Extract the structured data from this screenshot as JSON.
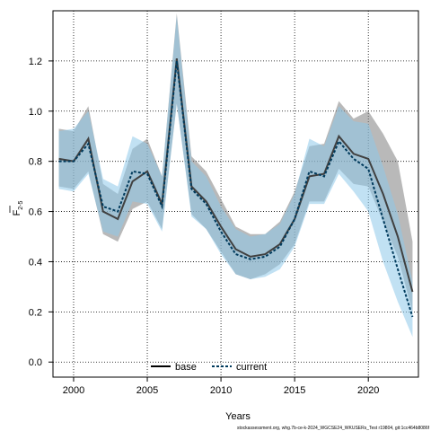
{
  "chart_data": {
    "type": "line",
    "xlabel": "Years",
    "ylabel": "F",
    "ylabel_sub": "2-5",
    "xlim": [
      1998.6,
      2023.4
    ],
    "ylim": [
      -0.06,
      1.4
    ],
    "xticks": [
      2000,
      2005,
      2010,
      2015,
      2020
    ],
    "yticks": [
      0.0,
      0.2,
      0.4,
      0.6,
      0.8,
      1.0,
      1.2
    ],
    "ytick_labels": [
      "0.0",
      "0.2",
      "0.4",
      "0.6",
      "0.8",
      "1.0",
      "1.2"
    ],
    "grid": true,
    "legend_position": "bottom",
    "x": [
      1999,
      2000,
      2001,
      2002,
      2003,
      2004,
      2005,
      2006,
      2007,
      2008,
      2009,
      2010,
      2011,
      2012,
      2013,
      2014,
      2015,
      2016,
      2017,
      2018,
      2019,
      2020,
      2021,
      2022,
      2023
    ],
    "series": [
      {
        "name": "base",
        "color": "#404040",
        "band_color": "#808080",
        "line_style": "solid",
        "values": [
          0.81,
          0.8,
          0.89,
          0.6,
          0.57,
          0.72,
          0.76,
          0.63,
          1.21,
          0.7,
          0.64,
          0.54,
          0.45,
          0.42,
          0.43,
          0.47,
          0.57,
          0.74,
          0.75,
          0.9,
          0.83,
          0.81,
          0.67,
          0.5,
          0.28
        ],
        "lower": [
          0.7,
          0.69,
          0.76,
          0.51,
          0.48,
          0.61,
          0.64,
          0.53,
          1.03,
          0.59,
          0.53,
          0.44,
          0.35,
          0.33,
          0.35,
          0.39,
          0.47,
          0.64,
          0.64,
          0.77,
          0.71,
          0.7,
          0.56,
          0.42,
          0.2
        ],
        "upper": [
          0.93,
          0.92,
          1.02,
          0.71,
          0.67,
          0.85,
          0.89,
          0.74,
          1.39,
          0.82,
          0.76,
          0.65,
          0.54,
          0.51,
          0.51,
          0.56,
          0.68,
          0.86,
          0.87,
          1.04,
          0.97,
          1.0,
          0.91,
          0.8,
          0.48
        ]
      },
      {
        "name": "current",
        "color": "#003a5c",
        "band_color": "#8ec8ea",
        "line_style": "dashed",
        "values": [
          0.8,
          0.8,
          0.87,
          0.62,
          0.6,
          0.76,
          0.75,
          0.62,
          1.2,
          0.69,
          0.63,
          0.52,
          0.43,
          0.41,
          0.42,
          0.46,
          0.57,
          0.76,
          0.74,
          0.88,
          0.81,
          0.77,
          0.57,
          0.37,
          0.18
        ],
        "lower": [
          0.69,
          0.68,
          0.75,
          0.52,
          0.5,
          0.64,
          0.63,
          0.52,
          1.03,
          0.58,
          0.53,
          0.43,
          0.35,
          0.33,
          0.34,
          0.37,
          0.46,
          0.63,
          0.63,
          0.75,
          0.68,
          0.6,
          0.4,
          0.24,
          0.1
        ],
        "upper": [
          0.92,
          0.93,
          1.0,
          0.73,
          0.7,
          0.9,
          0.87,
          0.74,
          1.38,
          0.8,
          0.74,
          0.62,
          0.53,
          0.5,
          0.51,
          0.55,
          0.67,
          0.89,
          0.86,
          1.02,
          0.96,
          0.95,
          0.78,
          0.59,
          0.32
        ]
      }
    ]
  },
  "footer_text": "stockassessment.org, whg.7b-ce-k-2024_WGCSE24_WKUSERs_Test r19804, git:1cc464b8086f",
  "legend": {
    "base_label": "base",
    "current_label": "current"
  }
}
